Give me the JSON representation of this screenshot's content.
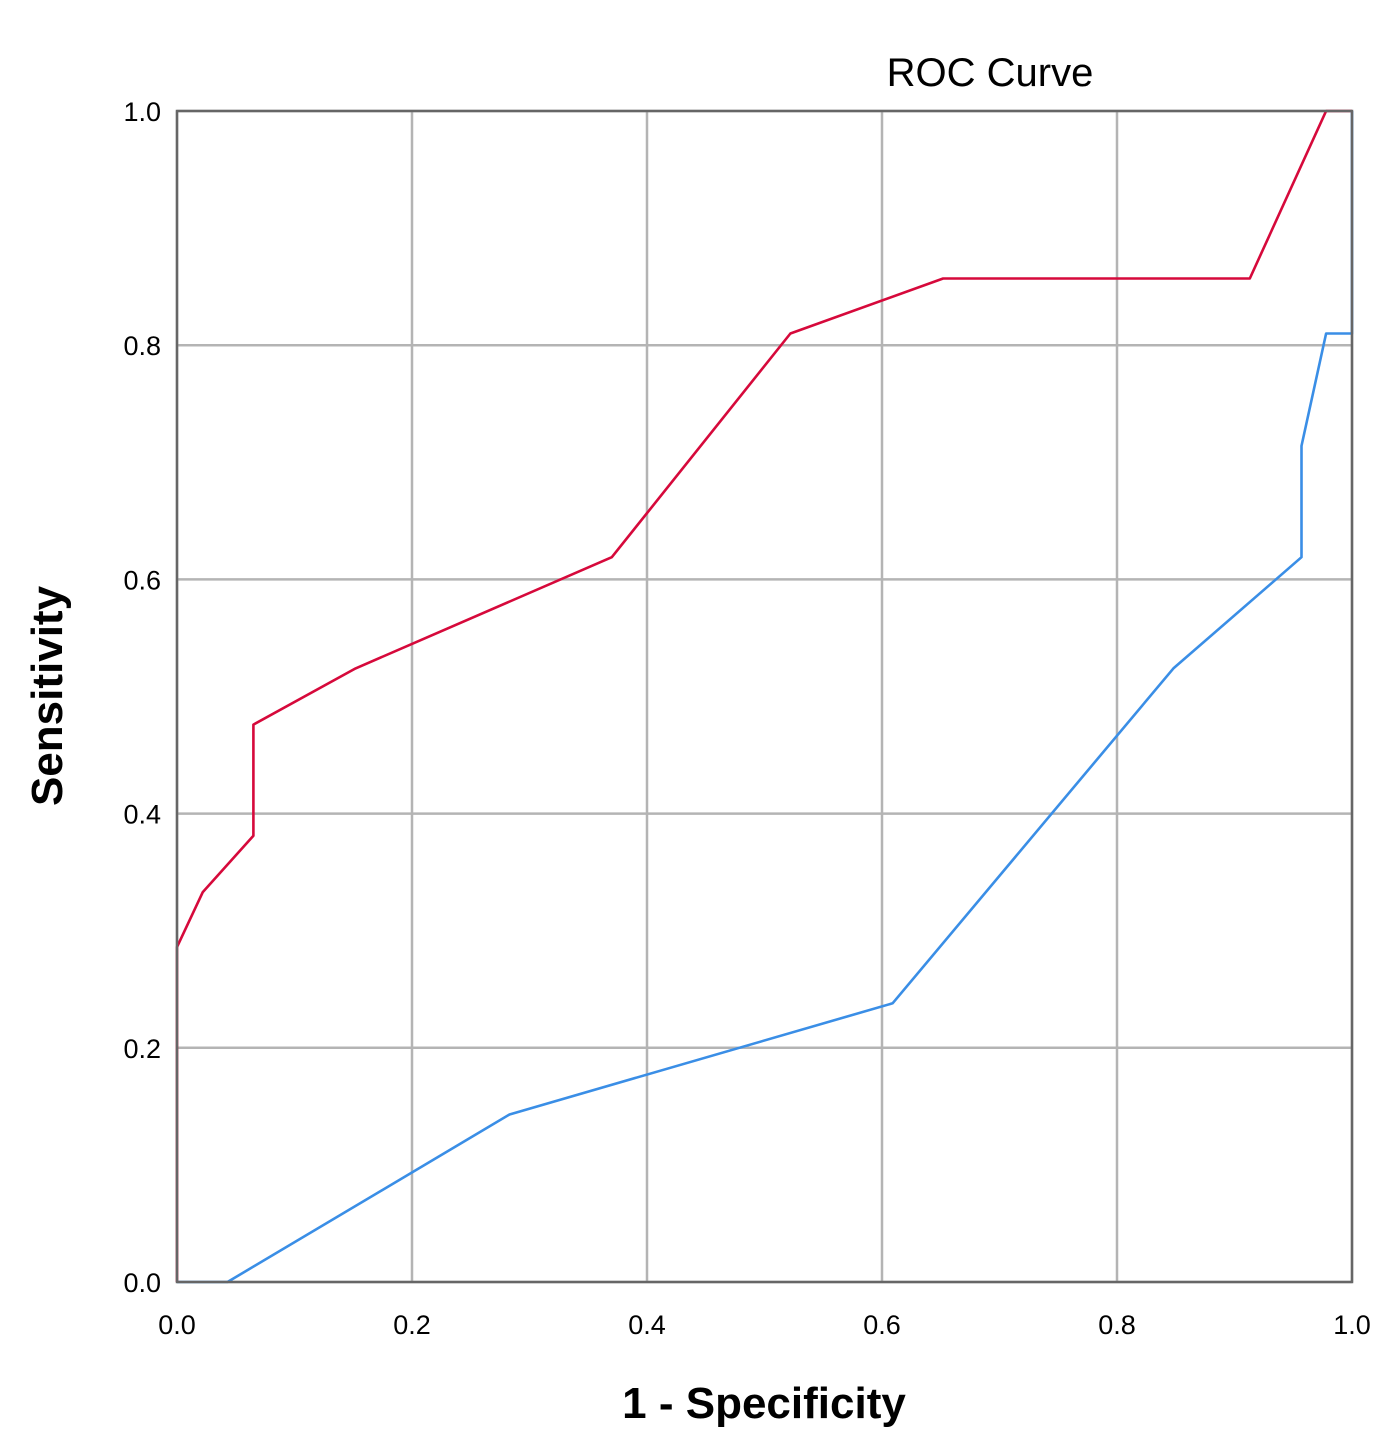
{
  "chart_data": {
    "type": "line",
    "title": "ROC Curve",
    "xlabel": "1 - Specificity",
    "ylabel": "Sensitivity",
    "xlim": [
      0,
      1
    ],
    "ylim": [
      0,
      1
    ],
    "grid": true,
    "xticks": [
      "0.0",
      "0.2",
      "0.4",
      "0.6",
      "0.8",
      "1.0"
    ],
    "yticks": [
      "0.0",
      "0.2",
      "0.4",
      "0.6",
      "0.8",
      "1.0"
    ],
    "series": [
      {
        "name": "Red curve",
        "color": "#d6093b",
        "x": [
          0.0,
          0.0,
          0.022,
          0.065,
          0.065,
          0.152,
          0.37,
          0.522,
          0.652,
          0.913,
          0.978,
          1.0
        ],
        "y": [
          0.0,
          0.286,
          0.333,
          0.381,
          0.476,
          0.524,
          0.619,
          0.81,
          0.857,
          0.857,
          1.0,
          1.0
        ]
      },
      {
        "name": "Blue curve",
        "color": "#3a8ee6",
        "x": [
          0.0,
          0.043,
          0.283,
          0.609,
          0.848,
          0.957,
          0.957,
          0.978,
          1.0,
          1.0
        ],
        "y": [
          0.0,
          0.0,
          0.143,
          0.238,
          0.524,
          0.619,
          0.714,
          0.81,
          0.81,
          1.0
        ]
      }
    ]
  }
}
